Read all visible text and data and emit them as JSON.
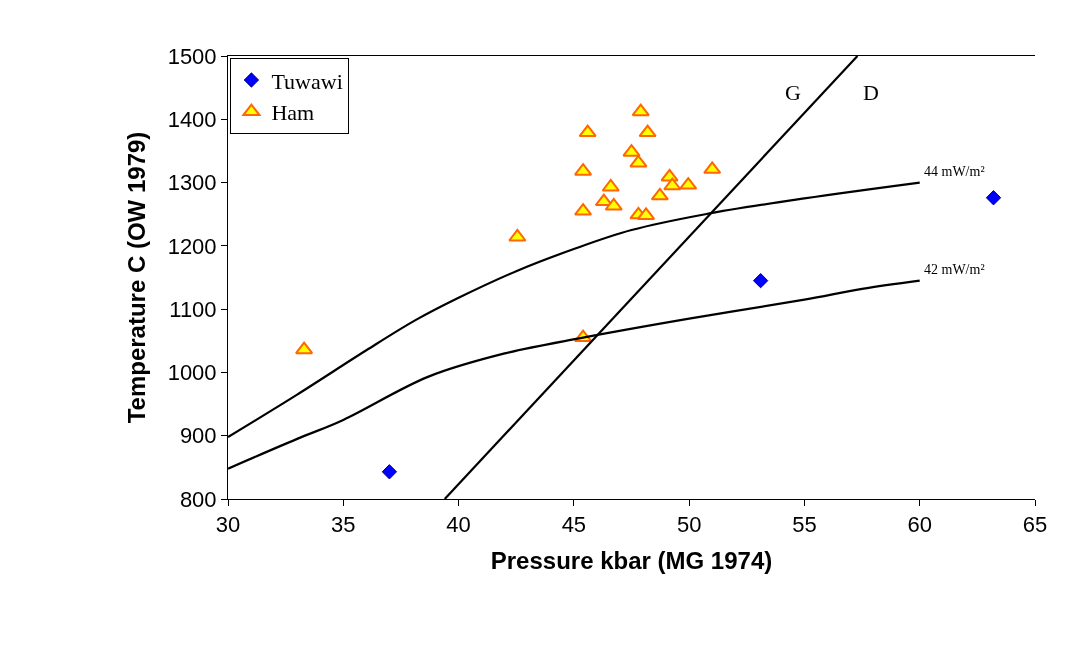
{
  "chart_data": {
    "type": "scatter",
    "xlabel": "Pressure kbar (MG 1974)",
    "ylabel": "Temperature C (OW 1979)",
    "xlim": [
      30,
      65
    ],
    "xticks": [
      30,
      35,
      40,
      45,
      50,
      55,
      60,
      65
    ],
    "ylim": [
      800,
      1500
    ],
    "yticks": [
      800,
      900,
      1000,
      1100,
      1200,
      1300,
      1400,
      1500
    ],
    "legend": "top left",
    "series": [
      {
        "name": "Tuwawi",
        "color": "#0000ff",
        "marker": "diamond",
        "x": [
          37.0,
          53.1,
          63.2
        ],
        "values": [
          843,
          1145,
          1276
        ]
      },
      {
        "name": "Ham",
        "color": "#ffff00",
        "marker": "triangle",
        "x": [
          33.3,
          45.4,
          47.9,
          45.6,
          48.2,
          47.5,
          47.8,
          45.4,
          51.0,
          49.15,
          49.27,
          49.96,
          46.6,
          48.73,
          46.3,
          46.73,
          45.4,
          47.8,
          48.13,
          42.55
        ],
        "values": [
          1036,
          1055,
          1412,
          1379,
          1379,
          1348,
          1331,
          1318,
          1321,
          1309,
          1295,
          1296,
          1293,
          1279,
          1270,
          1263,
          1255,
          1249,
          1248,
          1214
        ]
      },
      {
        "name": "44 mW/m²",
        "type": "line",
        "color": "#000000",
        "marker": "none",
        "line_style": "solid",
        "x": [
          30,
          33,
          36,
          38.15,
          40,
          42.5,
          45,
          47.5,
          50.7,
          55,
          60
        ],
        "values": [
          898,
          965,
          1035,
          1083,
          1118,
          1160,
          1195,
          1225,
          1250,
          1275,
          1300
        ]
      },
      {
        "name": "42 mW/m²",
        "type": "line",
        "color": "#000000",
        "marker": "none",
        "line_style": "solid",
        "x": [
          30,
          33,
          35,
          38.67,
          42,
          45.4,
          50,
          55,
          57.5,
          60
        ],
        "values": [
          848,
          895,
          925,
          993,
          1030,
          1055,
          1085,
          1115,
          1132,
          1145
        ]
      },
      {
        "type": "line",
        "color": "#000000",
        "marker": "none",
        "line_style": "solid",
        "x": [
          39.4,
          57.3
        ],
        "values": [
          800,
          1500
        ]
      }
    ],
    "annotations": [
      "G",
      "D"
    ]
  }
}
